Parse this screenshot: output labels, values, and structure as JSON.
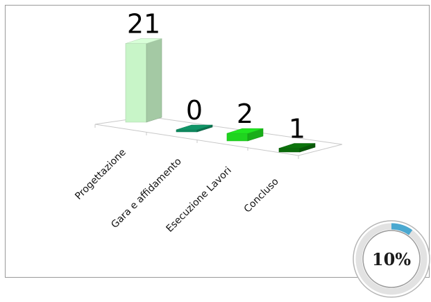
{
  "chart_data": {
    "type": "bar",
    "categories": [
      "Progettazione",
      "Gara e affidamento",
      "Esecuzione Lavori",
      "Concluso"
    ],
    "values": [
      21,
      0,
      2,
      1
    ],
    "colors": [
      "#c8f5c8",
      "#0f8a5f",
      "#1fd41f",
      "#0b6b0b"
    ],
    "data_labels": [
      "21",
      "0",
      "2",
      "1"
    ],
    "title": "",
    "xlabel": "",
    "ylabel": "",
    "legend": "none",
    "grid": false
  },
  "progress_badge": {
    "text": "10%",
    "value_fraction": 0.1,
    "ring_color": "#4aa8d0"
  }
}
